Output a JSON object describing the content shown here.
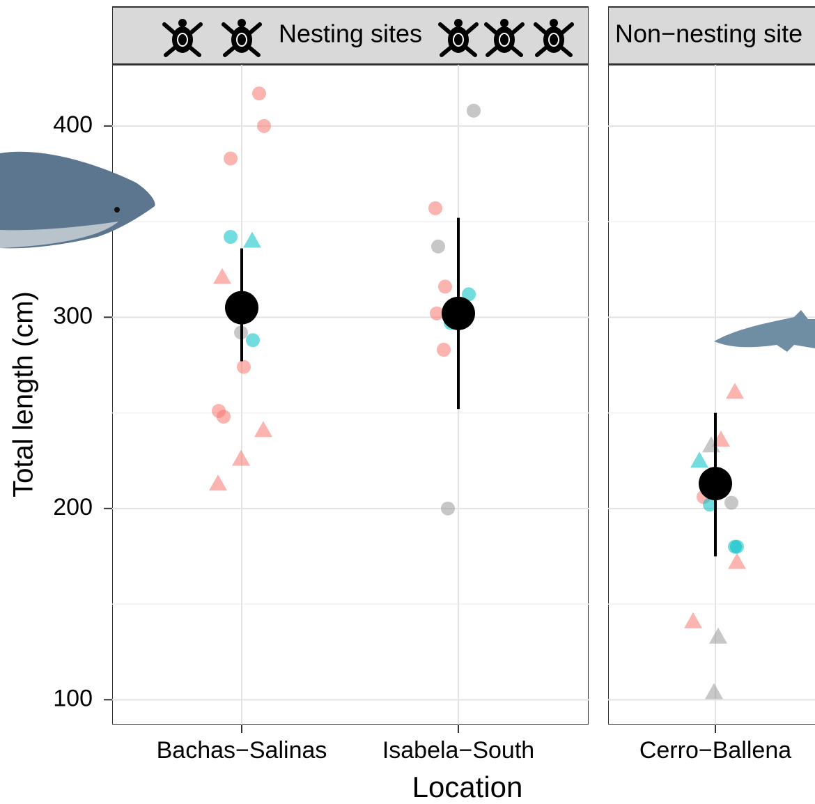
{
  "chart_data": {
    "type": "scatter",
    "y_label": "Total length (cm)",
    "x_label": "Location",
    "ylim": [
      87,
      432
    ],
    "yticks": [
      100,
      200,
      300,
      400
    ],
    "minor_yticks": [
      150,
      250,
      350
    ],
    "grid": true,
    "facets": [
      {
        "strip": "Nesting sites",
        "categories": [
          "Bachas−Salinas",
          "Isabela−South"
        ],
        "summary": {
          "color": "#000000",
          "x": [
            "Bachas−Salinas",
            "Isabela−South"
          ],
          "mean": [
            305,
            302
          ],
          "lower": [
            277,
            252
          ],
          "upper": [
            336,
            352
          ]
        },
        "series": [
          {
            "color": "#F8766D",
            "shape": "circle",
            "x": [
              "Bachas−Salinas",
              "Bachas−Salinas",
              "Bachas−Salinas",
              "Bachas−Salinas",
              "Bachas−Salinas",
              "Bachas−Salinas",
              "Isabela−South",
              "Isabela−South",
              "Isabela−South",
              "Isabela−South"
            ],
            "values": [
              417,
              400,
              383,
              274,
              251,
              248,
              357,
              316,
              302,
              283
            ]
          },
          {
            "color": "#F8766D",
            "shape": "triangle",
            "x": [
              "Bachas−Salinas",
              "Bachas−Salinas",
              "Bachas−Salinas",
              "Bachas−Salinas"
            ],
            "values": [
              321,
              241,
              226,
              213
            ]
          },
          {
            "color": "#00BFC4",
            "shape": "circle",
            "x": [
              "Bachas−Salinas",
              "Bachas−Salinas",
              "Bachas−Salinas",
              "Isabela−South",
              "Isabela−South"
            ],
            "values": [
              342,
              300,
              288,
              312,
              297
            ]
          },
          {
            "color": "#00BFC4",
            "shape": "triangle",
            "x": [
              "Bachas−Salinas"
            ],
            "values": [
              340
            ]
          },
          {
            "color": "#999999",
            "shape": "circle",
            "x": [
              "Bachas−Salinas",
              "Isabela−South",
              "Isabela−South",
              "Isabela−South"
            ],
            "values": [
              292,
              408,
              337,
              200
            ]
          }
        ]
      },
      {
        "strip": "Non−nesting site",
        "categories": [
          "Cerro−Ballena"
        ],
        "summary": {
          "color": "#000000",
          "x": [
            "Cerro−Ballena"
          ],
          "mean": [
            213
          ],
          "lower": [
            175
          ],
          "upper": [
            250
          ]
        },
        "series": [
          {
            "color": "#F8766D",
            "shape": "triangle",
            "x": [
              "Cerro−Ballena",
              "Cerro−Ballena",
              "Cerro−Ballena",
              "Cerro−Ballena"
            ],
            "values": [
              261,
              236,
              172,
              141
            ]
          },
          {
            "color": "#F8766D",
            "shape": "circle",
            "x": [
              "Cerro−Ballena"
            ],
            "values": [
              206
            ]
          },
          {
            "color": "#00BFC4",
            "shape": "triangle",
            "x": [
              "Cerro−Ballena"
            ],
            "values": [
              225
            ]
          },
          {
            "color": "#00BFC4",
            "shape": "circle",
            "x": [
              "Cerro−Ballena",
              "Cerro−Ballena",
              "Cerro−Ballena"
            ],
            "values": [
              202,
              180,
              180
            ]
          },
          {
            "color": "#999999",
            "shape": "triangle",
            "x": [
              "Cerro−Ballena",
              "Cerro−Ballena",
              "Cerro−Ballena"
            ],
            "values": [
              233,
              133,
              104
            ]
          },
          {
            "color": "#999999",
            "shape": "circle",
            "x": [
              "Cerro−Ballena"
            ],
            "values": [
              203
            ]
          }
        ]
      }
    ]
  }
}
